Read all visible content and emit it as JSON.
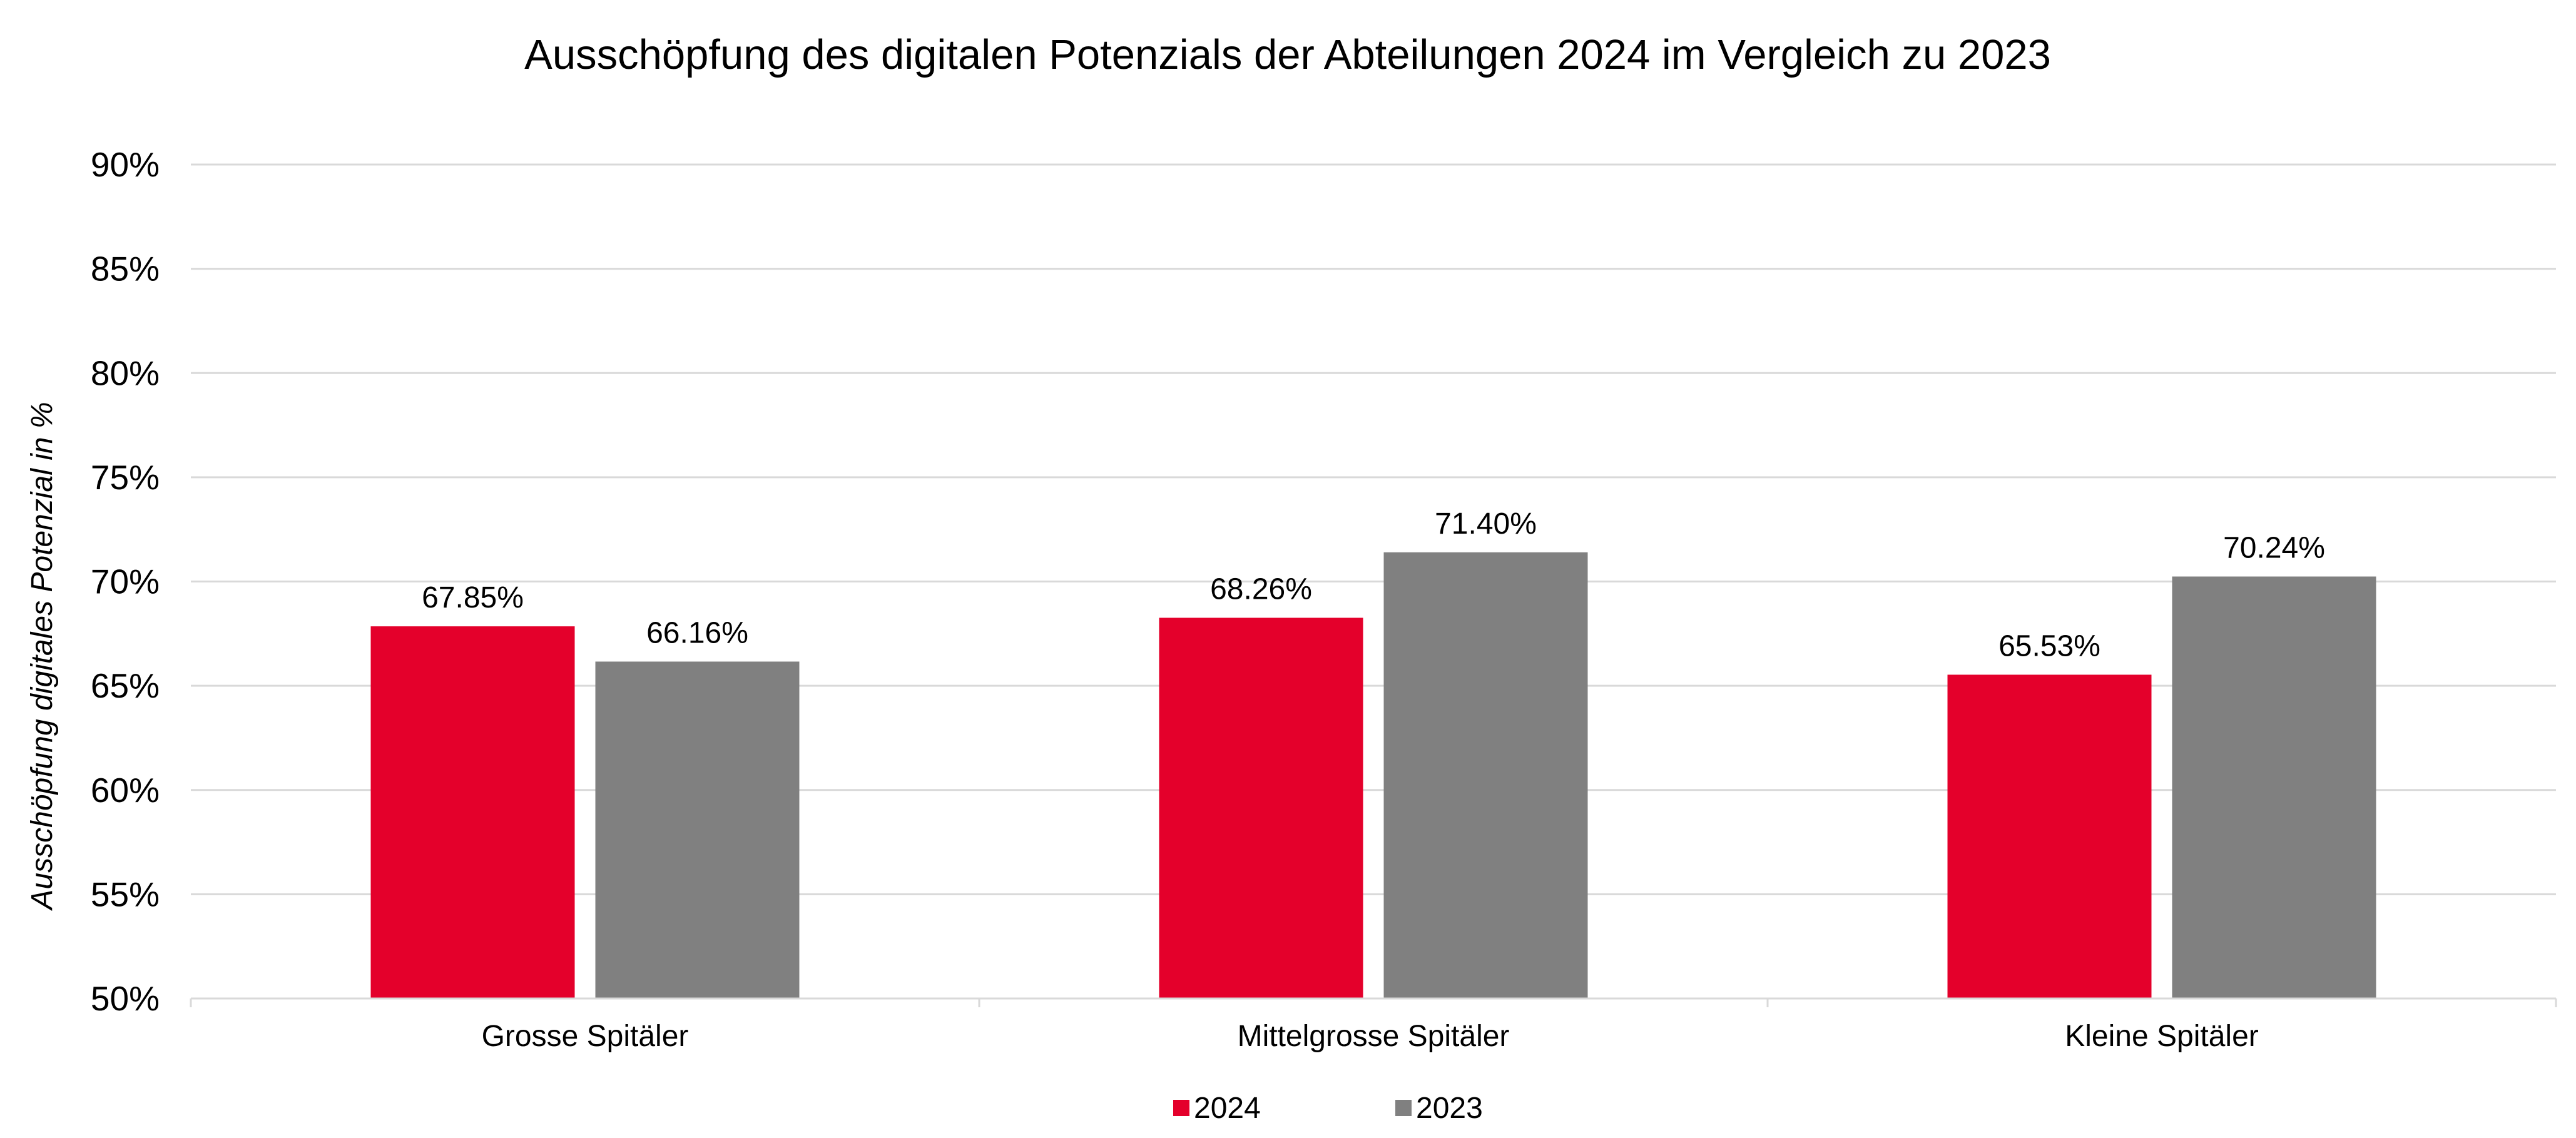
{
  "chart_data": {
    "type": "bar",
    "title": "Ausschöpfung des digitalen Potenzials der Abteilungen 2024 im Vergleich zu 2023",
    "xlabel": "",
    "ylabel": "Ausschöpfung digitales Potenzial in %",
    "ylim": [
      50,
      90
    ],
    "yticks": [
      50,
      55,
      60,
      65,
      70,
      75,
      80,
      85,
      90
    ],
    "ytick_labels": [
      "50%",
      "55%",
      "60%",
      "65%",
      "70%",
      "75%",
      "80%",
      "85%",
      "90%"
    ],
    "categories": [
      "Grosse Spitäler",
      "Mittelgrosse Spitäler",
      "Kleine Spitäler"
    ],
    "series": [
      {
        "name": "2024",
        "color": "#e4002b",
        "values": [
          67.85,
          68.26,
          65.53
        ],
        "labels": [
          "67.85%",
          "68.26%",
          "65.53%"
        ]
      },
      {
        "name": "2023",
        "color": "#808080",
        "values": [
          66.16,
          71.4,
          70.24
        ],
        "labels": [
          "66.16%",
          "71.40%",
          "70.24%"
        ]
      }
    ],
    "grid": true,
    "legend_position": "bottom-center"
  }
}
